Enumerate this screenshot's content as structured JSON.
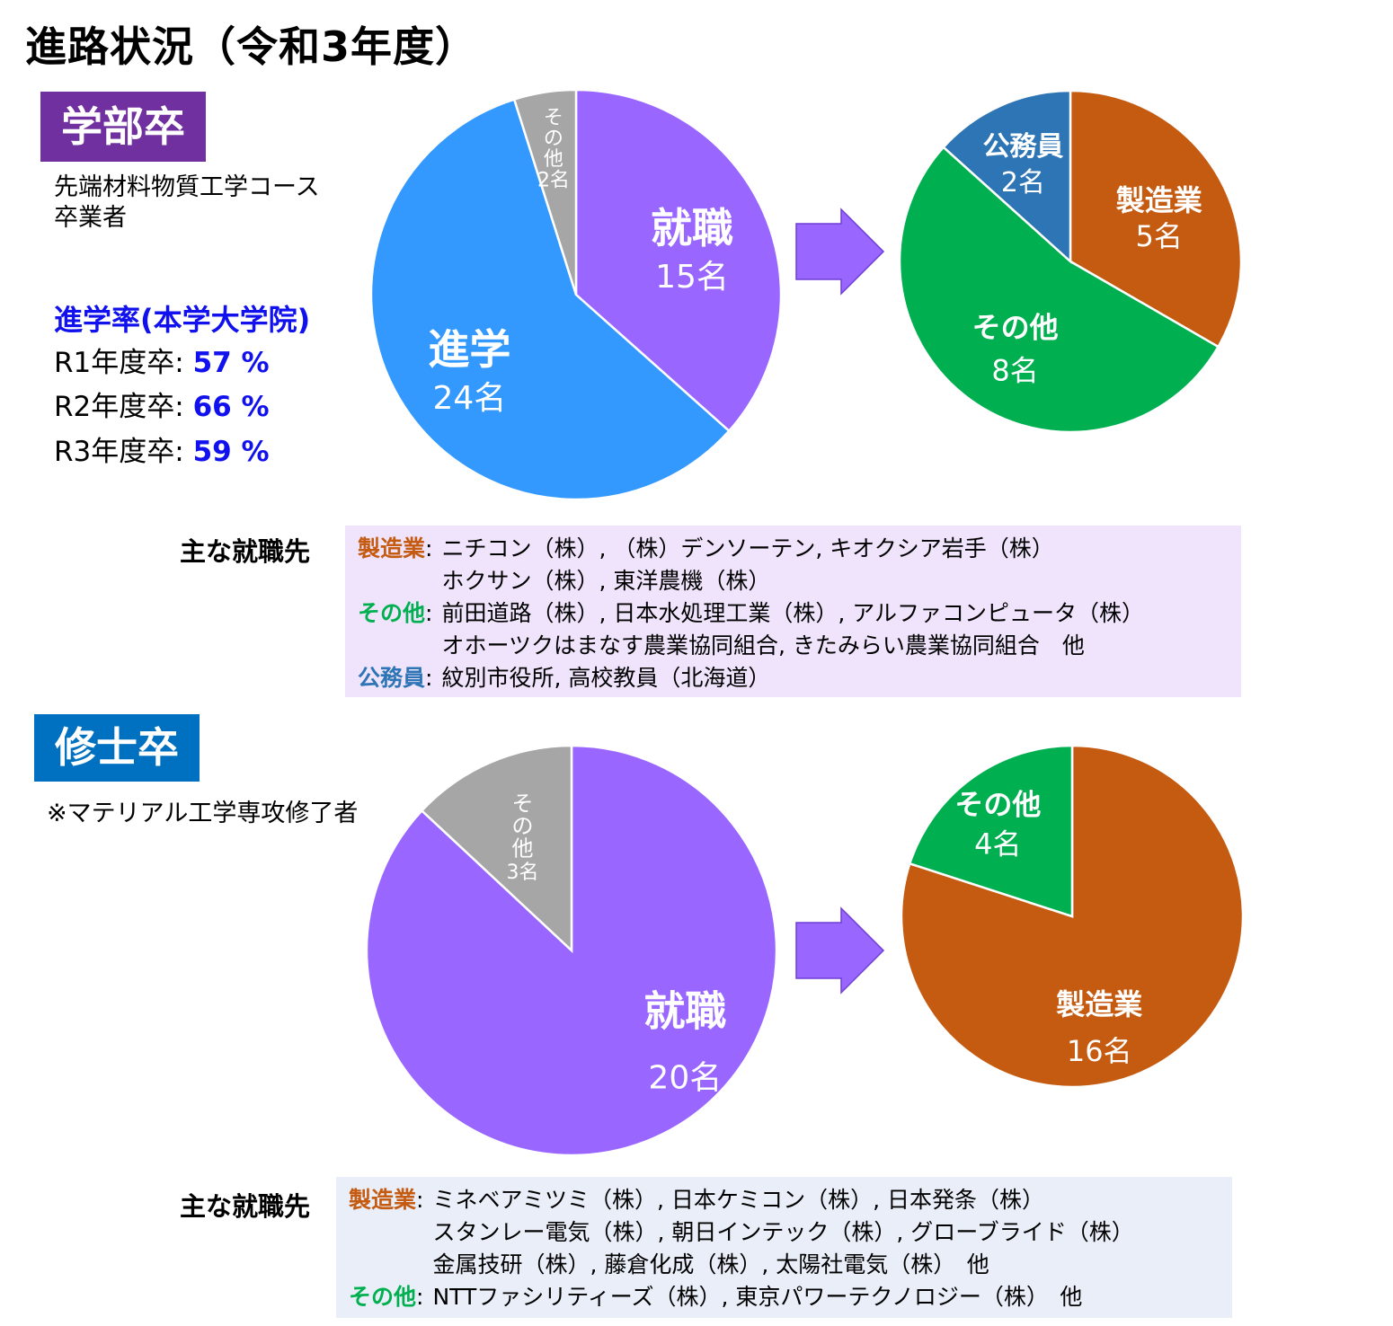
{
  "title": "進路状況（令和3年度）",
  "colors": {
    "shushoku": "#9966FF",
    "shingaku": "#3399FF",
    "sonota_gray": "#A6A6A6",
    "seizo": "#C55A11",
    "sonota_green": "#00B050",
    "koumu": "#2E75B6",
    "badge_ug": "#7030A0",
    "badge_ms": "#0070C0",
    "rate_accent": "#1111EE",
    "box_ug": "#EFE4FB",
    "box_ms": "#E9EEF8",
    "arrow": "#9966FF"
  },
  "undergrad": {
    "badge": "学部卒",
    "course_lines": [
      "先端材料物質工学コース",
      "卒業者"
    ],
    "rate_title": "進学率(本学大学院)",
    "rates": [
      {
        "label": "R1年度卒: ",
        "value": "57 %"
      },
      {
        "label": "R2年度卒: ",
        "value": "66 %"
      },
      {
        "label": "R3年度卒: ",
        "value": "59 %"
      }
    ],
    "employment_label": "主な就職先",
    "employment": [
      {
        "category": "製造業",
        "color": "#C55A11",
        "lines": [
          "ニチコン（株）, （株）デンソーテン, キオクシア岩手（株）",
          "ホクサン（株）, 東洋農機（株）"
        ]
      },
      {
        "category": "その他",
        "color": "#00B050",
        "lines": [
          "前田道路（株）, 日本水処理工業（株）, アルファコンピュータ（株）",
          "オホーツクはまなす農業協同組合, きたみらい農業協同組合　他"
        ]
      },
      {
        "category": "公務員",
        "color": "#2E75B6",
        "lines": [
          "紋別市役所, 高校教員（北海道）"
        ]
      }
    ]
  },
  "masters": {
    "badge": "修士卒",
    "course_lines": [
      "※マテリアル工学専攻修了者"
    ],
    "employment_label": "主な就職先",
    "employment": [
      {
        "category": "製造業",
        "color": "#C55A11",
        "lines": [
          "ミネベアミツミ（株）, 日本ケミコン（株）, 日本発条（株）",
          "スタンレー電気（株）, 朝日インテック（株）, グローブライド（株）",
          "金属技研（株）, 藤倉化成（株）, 太陽社電気（株）　他"
        ]
      },
      {
        "category": "その他",
        "color": "#00B050",
        "lines": [
          "NTTファシリティーズ（株）, 東京パワーテクノロジー（株）　他"
        ]
      }
    ]
  },
  "chart_data": [
    {
      "type": "pie",
      "slices": [
        {
          "label": "就職",
          "value": 15,
          "value_label": "15名",
          "color": "#9966FF"
        },
        {
          "label": "進学",
          "value": 24,
          "value_label": "24名",
          "color": "#3399FF"
        },
        {
          "label": "その他",
          "value": 2,
          "value_label": "2名",
          "color": "#A6A6A6"
        }
      ]
    },
    {
      "type": "pie",
      "slices": [
        {
          "label": "製造業",
          "value": 5,
          "value_label": "5名",
          "color": "#C55A11"
        },
        {
          "label": "その他",
          "value": 8,
          "value_label": "8名",
          "color": "#00B050"
        },
        {
          "label": "公務員",
          "value": 2,
          "value_label": "2名",
          "color": "#2E75B6"
        }
      ]
    },
    {
      "type": "pie",
      "slices": [
        {
          "label": "就職",
          "value": 20,
          "value_label": "20名",
          "color": "#9966FF"
        },
        {
          "label": "その他",
          "value": 3,
          "value_label": "3名",
          "color": "#A6A6A6"
        }
      ]
    },
    {
      "type": "pie",
      "slices": [
        {
          "label": "製造業",
          "value": 16,
          "value_label": "16名",
          "color": "#C55A11"
        },
        {
          "label": "その他",
          "value": 4,
          "value_label": "4名",
          "color": "#00B050"
        }
      ]
    }
  ]
}
